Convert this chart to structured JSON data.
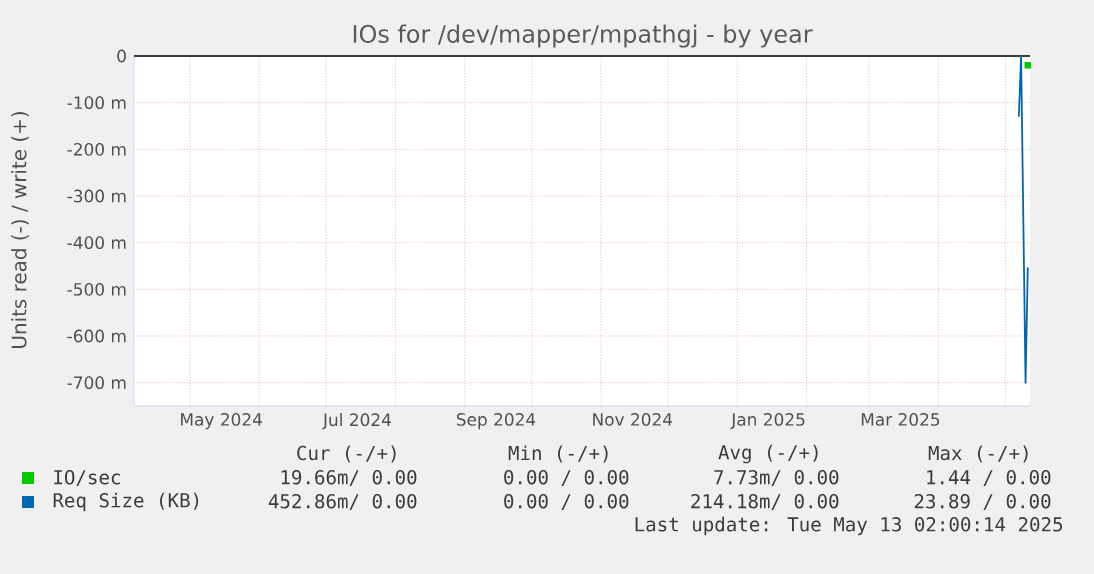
{
  "chart_data": {
    "type": "line",
    "title": "IOs for /dev/mapper/mpathgj - by year",
    "ylabel": "Units read (-) / write (+)",
    "series": [
      {
        "name": "IO/sec",
        "color": "#00cc00",
        "marker": "square",
        "x": [
          "2025-05-11"
        ],
        "values": [
          -20
        ]
      },
      {
        "name": "Req Size (KB)",
        "color": "#0066b3",
        "x": [
          "2025-05-07",
          "2025-05-08",
          "2025-05-10",
          "2025-05-11"
        ],
        "values": [
          -130,
          0,
          -700,
          -453
        ]
      }
    ],
    "xlim": [
      "2024-04-06",
      "2025-05-12"
    ],
    "ylim": [
      -750,
      0
    ],
    "xticks": [
      {
        "value": "2024-05-15",
        "label": "May 2024"
      },
      {
        "value": "2024-07-15",
        "label": "Jul 2024"
      },
      {
        "value": "2024-09-15",
        "label": "Sep 2024"
      },
      {
        "value": "2024-11-15",
        "label": "Nov 2024"
      },
      {
        "value": "2025-01-15",
        "label": "Jan 2025"
      },
      {
        "value": "2025-03-15",
        "label": "Mar 2025"
      },
      {
        "value": "2024-05-01",
        "label": null
      },
      {
        "value": "2024-06-01",
        "label": null
      },
      {
        "value": "2024-07-01",
        "label": null
      },
      {
        "value": "2024-08-01",
        "label": null
      },
      {
        "value": "2024-09-01",
        "label": null
      },
      {
        "value": "2024-10-01",
        "label": null
      },
      {
        "value": "2024-11-01",
        "label": null
      },
      {
        "value": "2024-12-01",
        "label": null
      },
      {
        "value": "2025-01-01",
        "label": null
      },
      {
        "value": "2025-02-01",
        "label": null
      },
      {
        "value": "2025-03-01",
        "label": null
      },
      {
        "value": "2025-04-01",
        "label": null
      },
      {
        "value": "2025-05-01",
        "label": null
      }
    ],
    "yticks": [
      0,
      {
        "value": -100,
        "label": "-100 m"
      },
      {
        "value": -200,
        "label": "-200 m"
      },
      {
        "value": -300,
        "label": "-300 m"
      },
      {
        "value": -400,
        "label": "-400 m"
      },
      {
        "value": -500,
        "label": "-500 m"
      },
      {
        "value": -600,
        "label": "-600 m"
      },
      {
        "value": -700,
        "label": "-700 m"
      }
    ],
    "grid": true,
    "legend": "bottom",
    "ref_lines": [
      {
        "axis": "y",
        "value": 0,
        "color": "#000000"
      }
    ],
    "annotations": [
      "Cur (-/+)",
      "Min (-/+)",
      "Avg (-/+)",
      "Max (-/+)",
      "19.66m/  0.00",
      "0.00 /  0.00",
      "7.73m/  0.00",
      "1.44 /  0.00",
      "452.86m/  0.00",
      "0.00 /  0.00",
      "214.18m/  0.00",
      "23.89 /  0.00",
      "Last update: Tue May 13 02:00:14 2025"
    ]
  }
}
